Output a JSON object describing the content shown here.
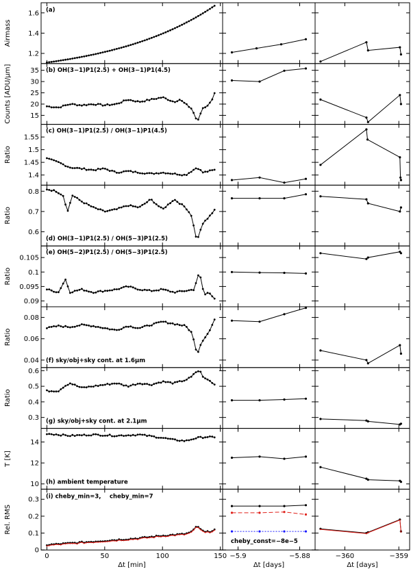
{
  "chart_data": {
    "type": "line",
    "columns": [
      {
        "key": "left",
        "xlim": [
          -5,
          152
        ],
        "ticks": [
          0,
          50,
          100,
          150
        ],
        "tick_labels": [
          "0",
          "50",
          "100",
          "150"
        ],
        "xlabel": "Δt [min]"
      },
      {
        "key": "mid",
        "xlim": [
          -5.905,
          -5.875
        ],
        "ticks": [
          -5.9,
          -5.88
        ],
        "tick_labels": [
          "−5.9",
          "−5.88"
        ],
        "xlabel": "Δt [days]"
      },
      {
        "key": "right",
        "xlim": [
          -360.55,
          -358.8
        ],
        "ticks": [
          -360,
          -359
        ],
        "tick_labels": [
          "−360",
          "−359"
        ],
        "xlabel": "Δt [days]"
      }
    ],
    "panels": [
      {
        "label": "(a)",
        "annotation": "",
        "ylabel": "Airmass",
        "ylim": [
          1.1,
          1.7
        ],
        "yticks": [
          1.2,
          1.4,
          1.6
        ],
        "ytick_labels": [
          "1.2",
          "1.4",
          "1.6"
        ],
        "left": {
          "x0": 0,
          "x1": 145,
          "start": 1.11,
          "end": 1.67,
          "shape": "exp",
          "noise": 0
        },
        "mid": {
          "x": [
            -5.902,
            -5.894,
            -5.886,
            -5.878
          ],
          "y": [
            1.21,
            1.25,
            1.29,
            1.34
          ]
        },
        "right": {
          "x": [
            -360.45,
            -359.6,
            -359.57,
            -358.98,
            -358.96
          ],
          "y": [
            1.12,
            1.31,
            1.23,
            1.26,
            1.19
          ]
        }
      },
      {
        "label": "(b)",
        "annotation": "OH(3−1)P1(2.5) + OH(3−1)P1(4.5)",
        "ylabel": "Counts [ADU/μm]",
        "ylim": [
          11,
          38
        ],
        "yticks": [
          15,
          20,
          25,
          30,
          35
        ],
        "ytick_labels": [
          "15",
          "20",
          "25",
          "30",
          "35"
        ],
        "left": {
          "x": [
            0,
            10,
            20,
            30,
            40,
            50,
            60,
            70,
            80,
            90,
            100,
            110,
            115,
            120,
            125,
            128,
            130,
            132,
            134,
            138,
            142,
            145
          ],
          "y": [
            19,
            18.5,
            20,
            19.5,
            20,
            19.5,
            20,
            22,
            21,
            22,
            23,
            21,
            22,
            20,
            18,
            15,
            12,
            14,
            18,
            19,
            21,
            25
          ]
        },
        "mid": {
          "x": [
            -5.902,
            -5.893,
            -5.885,
            -5.878
          ],
          "y": [
            30.5,
            30,
            34.8,
            35.8
          ]
        },
        "right": {
          "x": [
            -360.45,
            -359.6,
            -359.57,
            -358.98,
            -358.96
          ],
          "y": [
            22,
            14,
            12,
            24,
            20
          ]
        }
      },
      {
        "label": "(c)",
        "annotation": "OH(3−1)P1(2.5) / OH(3−1)P1(4.5)",
        "ylabel": "Ratio",
        "ylim": [
          1.36,
          1.6
        ],
        "yticks": [
          1.4,
          1.45,
          1.5,
          1.55
        ],
        "ytick_labels": [
          "1.4",
          "1.45",
          "1.5",
          "1.55"
        ],
        "left": {
          "x": [
            0,
            10,
            20,
            30,
            40,
            50,
            60,
            70,
            80,
            90,
            100,
            110,
            120,
            130,
            135,
            140,
            145
          ],
          "y": [
            1.465,
            1.45,
            1.43,
            1.425,
            1.42,
            1.425,
            1.41,
            1.415,
            1.41,
            1.405,
            1.41,
            1.405,
            1.4,
            1.43,
            1.41,
            1.415,
            1.42
          ]
        },
        "mid": {
          "x": [
            -5.902,
            -5.893,
            -5.885,
            -5.878
          ],
          "y": [
            1.38,
            1.39,
            1.37,
            1.385
          ]
        },
        "right": {
          "x": [
            -360.45,
            -359.6,
            -359.58,
            -358.98,
            -358.97,
            -358.96
          ],
          "y": [
            1.44,
            1.58,
            1.54,
            1.47,
            1.39,
            1.38
          ]
        }
      },
      {
        "label": "(d)",
        "annotation": "OH(3−1)P1(2.5) / OH(5−3)P1(2.5)",
        "ylabel": "Ratio",
        "annotation_position": "bottom",
        "ylim": [
          0.53,
          0.83
        ],
        "yticks": [
          0.6,
          0.7,
          0.8
        ],
        "ytick_labels": [
          "0.6",
          "0.7",
          "0.8"
        ],
        "left": {
          "x": [
            0,
            8,
            14,
            18,
            22,
            30,
            40,
            50,
            60,
            70,
            80,
            90,
            100,
            110,
            120,
            125,
            128,
            130,
            132,
            136,
            140,
            145
          ],
          "y": [
            0.81,
            0.8,
            0.78,
            0.7,
            0.78,
            0.75,
            0.72,
            0.7,
            0.71,
            0.73,
            0.72,
            0.76,
            0.71,
            0.76,
            0.72,
            0.68,
            0.6,
            0.55,
            0.6,
            0.65,
            0.67,
            0.71
          ]
        },
        "mid": {
          "x": [
            -5.902,
            -5.893,
            -5.885,
            -5.878
          ],
          "y": [
            0.765,
            0.765,
            0.765,
            0.785
          ]
        },
        "right": {
          "x": [
            -360.45,
            -359.6,
            -359.57,
            -358.98,
            -358.96
          ],
          "y": [
            0.775,
            0.76,
            0.74,
            0.7,
            0.72
          ]
        }
      },
      {
        "label": "(e)",
        "annotation": "OH(5−2)P1(2.5) / OH(5−3)P1(2.5)",
        "ylabel": "Ratio",
        "ylim": [
          0.088,
          0.109
        ],
        "yticks": [
          0.09,
          0.095,
          0.1,
          0.105
        ],
        "ytick_labels": [
          "0.09",
          "0.095",
          "0.1",
          "0.105"
        ],
        "left": {
          "x": [
            0,
            10,
            16,
            20,
            30,
            40,
            50,
            60,
            70,
            80,
            90,
            100,
            110,
            120,
            128,
            130,
            133,
            136,
            140,
            145
          ],
          "y": [
            0.094,
            0.093,
            0.0975,
            0.093,
            0.094,
            0.093,
            0.0935,
            0.094,
            0.095,
            0.094,
            0.0935,
            0.094,
            0.093,
            0.0935,
            0.094,
            0.099,
            0.098,
            0.092,
            0.093,
            0.091
          ]
        },
        "mid": {
          "x": [
            -5.902,
            -5.893,
            -5.885,
            -5.878
          ],
          "y": [
            0.1,
            0.0998,
            0.0997,
            0.0995
          ]
        },
        "right": {
          "x": [
            -360.45,
            -359.6,
            -359.57,
            -358.98,
            -358.96
          ],
          "y": [
            0.1065,
            0.1045,
            0.105,
            0.107,
            0.1065
          ]
        }
      },
      {
        "label": "(f)",
        "annotation": "sky/obj+sky cont. at 1.6μm",
        "ylabel": "Ratio",
        "annotation_position": "bottom",
        "ylim": [
          0.033,
          0.09
        ],
        "yticks": [
          0.04,
          0.06,
          0.08
        ],
        "ytick_labels": [
          "0.04",
          "0.06",
          "0.08"
        ],
        "left": {
          "x": [
            0,
            10,
            20,
            30,
            40,
            50,
            60,
            70,
            80,
            90,
            100,
            110,
            120,
            125,
            128,
            130,
            133,
            137,
            141,
            145
          ],
          "y": [
            0.07,
            0.072,
            0.071,
            0.073,
            0.072,
            0.07,
            0.068,
            0.072,
            0.07,
            0.073,
            0.076,
            0.074,
            0.072,
            0.066,
            0.055,
            0.045,
            0.055,
            0.062,
            0.068,
            0.078
          ]
        },
        "mid": {
          "x": [
            -5.902,
            -5.893,
            -5.885,
            -5.878
          ],
          "y": [
            0.077,
            0.076,
            0.083,
            0.089
          ]
        },
        "right": {
          "x": [
            -360.45,
            -359.6,
            -359.57,
            -358.98,
            -358.96
          ],
          "y": [
            0.049,
            0.04,
            0.037,
            0.054,
            0.046
          ]
        }
      },
      {
        "label": "(g)",
        "annotation": "sky/obj+sky cont. at 2.1μm",
        "ylabel": "Ratio",
        "annotation_position": "bottom",
        "ylim": [
          0.23,
          0.62
        ],
        "yticks": [
          0.3,
          0.4,
          0.5,
          0.6
        ],
        "ytick_labels": [
          "0.3",
          "0.4",
          "0.5",
          "0.6"
        ],
        "left": {
          "x": [
            0,
            10,
            15,
            20,
            30,
            40,
            50,
            60,
            70,
            80,
            90,
            100,
            110,
            120,
            125,
            130,
            133,
            136,
            140,
            145
          ],
          "y": [
            0.47,
            0.47,
            0.5,
            0.52,
            0.49,
            0.5,
            0.51,
            0.52,
            0.5,
            0.52,
            0.51,
            0.53,
            0.52,
            0.54,
            0.56,
            0.6,
            0.59,
            0.55,
            0.54,
            0.51
          ]
        },
        "mid": {
          "x": [
            -5.902,
            -5.893,
            -5.885,
            -5.878
          ],
          "y": [
            0.41,
            0.41,
            0.415,
            0.42
          ]
        },
        "right": {
          "x": [
            -360.45,
            -359.6,
            -359.57,
            -358.98,
            -358.96
          ],
          "y": [
            0.29,
            0.28,
            0.275,
            0.255,
            0.26
          ]
        }
      },
      {
        "label": "(h)",
        "annotation": "ambient temperature",
        "ylabel": "T [K]",
        "annotation_position": "bottom",
        "ylim": [
          9.5,
          15.3
        ],
        "yticks": [
          10,
          12,
          14
        ],
        "ytick_labels": [
          "10",
          "12",
          "14"
        ],
        "left": {
          "x": [
            0,
            20,
            40,
            60,
            80,
            100,
            110,
            120,
            130,
            140,
            145
          ],
          "y": [
            14.8,
            14.6,
            14.7,
            14.6,
            14.7,
            14.4,
            14.2,
            14.1,
            14.4,
            14.5,
            14.4
          ]
        },
        "mid": {
          "x": [
            -5.902,
            -5.893,
            -5.885,
            -5.878
          ],
          "y": [
            12.5,
            12.6,
            12.4,
            12.6
          ]
        },
        "right": {
          "x": [
            -360.45,
            -359.6,
            -359.57,
            -358.98,
            -358.96
          ],
          "y": [
            11.6,
            10.5,
            10.4,
            10.3,
            10.2
          ]
        }
      },
      {
        "label": "(i)",
        "annotation": "cheby_min=3,",
        "annotation2": "cheby_min=7",
        "ylabel": "Rel. RMS",
        "ylim": [
          0,
          0.36
        ],
        "yticks": [
          0,
          0.1,
          0.2,
          0.3
        ],
        "ytick_labels": [
          "0",
          "0.1",
          "0.2",
          "0.3"
        ],
        "left": {
          "x": [
            0,
            20,
            40,
            60,
            80,
            100,
            120,
            126,
            130,
            133,
            137,
            141,
            145
          ],
          "y": [
            0.03,
            0.04,
            0.05,
            0.06,
            0.07,
            0.085,
            0.095,
            0.11,
            0.145,
            0.12,
            0.105,
            0.11,
            0.12
          ]
        },
        "mid": {
          "x": [
            -5.902,
            -5.893,
            -5.885,
            -5.878
          ],
          "lines": [
            {
              "name": "cheby_min=3",
              "color": "#000000",
              "dash": "",
              "y": [
                0.26,
                0.26,
                0.26,
                0.265
              ]
            },
            {
              "name": "cheby_min=7",
              "color": "#e0201a",
              "dash": "6,3",
              "y": [
                0.22,
                0.22,
                0.225,
                0.21
              ]
            },
            {
              "name": "cheby_const=-8e-5",
              "color": "#1a1aff",
              "dash": "2,2",
              "y": [
                0.11,
                0.11,
                0.11,
                0.11
              ]
            }
          ],
          "legend_text": "cheby_const=−8e−5"
        },
        "right": {
          "x": [
            -360.45,
            -359.6,
            -359.57,
            -358.98,
            -358.96
          ],
          "y": [
            0.125,
            0.1,
            0.105,
            0.18,
            0.11
          ]
        }
      }
    ]
  },
  "colors": {
    "red": "#e0201a",
    "blue": "#1a1aff",
    "axis": "#000000"
  }
}
